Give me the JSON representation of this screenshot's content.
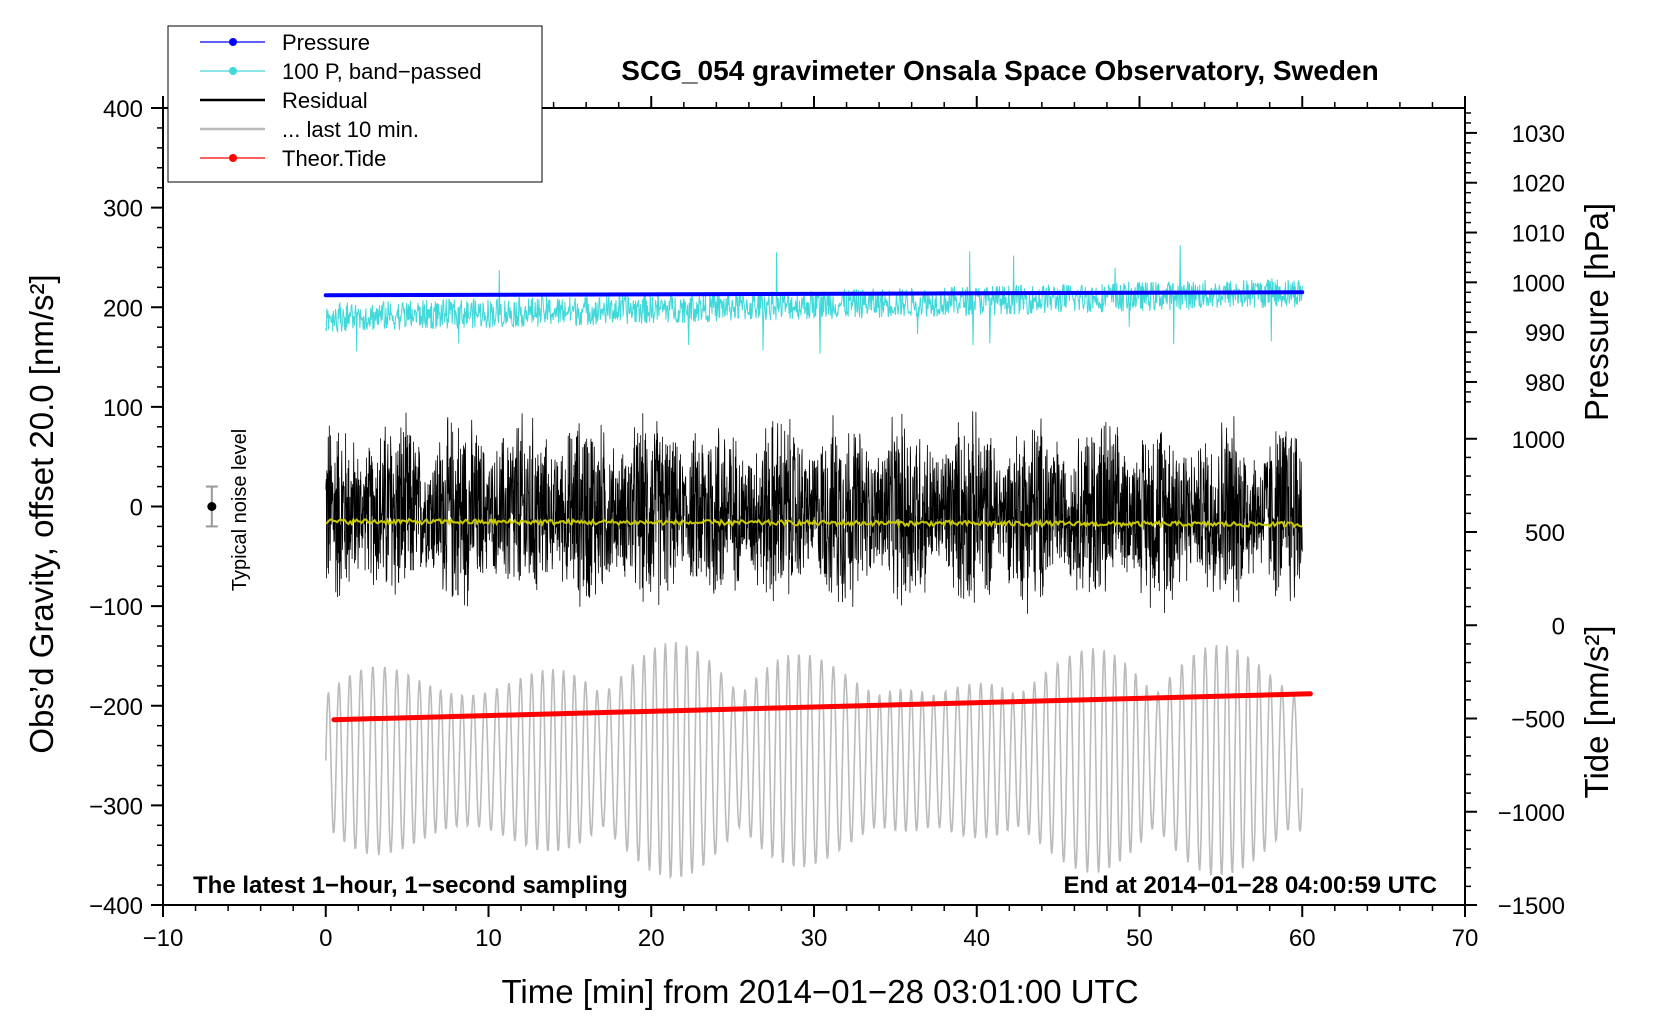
{
  "chart_data": {
    "type": "line",
    "title": "SCG_054 gravimeter Onsala Space Observatory, Sweden",
    "xlabel": "Time [min] from 2014−01−28 03:01:00 UTC",
    "ylabel_left": "Obs’d Gravity, offset 20.0 [nm/s²]",
    "ylabel_right_top": "Pressure [hPa]",
    "ylabel_right_bottom": "Tide [nm/s²]",
    "xlim": [
      -10,
      70
    ],
    "ylim": [
      -400,
      400
    ],
    "x_ticks": [
      -10,
      0,
      10,
      20,
      30,
      40,
      50,
      60,
      70
    ],
    "x_tick_labels": [
      "−10",
      "0",
      "10",
      "20",
      "30",
      "40",
      "50",
      "60",
      "70"
    ],
    "y_ticks": [
      400,
      300,
      200,
      100,
      0,
      -100,
      -200,
      -300,
      -400
    ],
    "y_tick_labels": [
      "400",
      "300",
      "200",
      "100",
      "0",
      "−100",
      "−200",
      "−300",
      "−400"
    ],
    "pressure_axis": {
      "ticks": [
        1030,
        1020,
        1010,
        1000,
        990,
        980
      ],
      "tick_labels": [
        "1030",
        "1020",
        "1010",
        "1000",
        "990",
        "980"
      ],
      "range_hpa_at_gravity": {
        "g400": 1035,
        "g100": 975
      }
    },
    "tide_axis": {
      "ticks": [
        1000,
        500,
        0,
        -500,
        -1000,
        -1500
      ],
      "tick_labels": [
        "1000",
        "500",
        "0",
        "−500",
        "−1000",
        "−1500"
      ],
      "range_nms2_at_gravity": {
        "g68": 1000,
        "g-400": -1500
      }
    },
    "legend": [
      {
        "label": "Pressure",
        "color": "#0000ff",
        "marker": true
      },
      {
        "label": "100 P, band−passed",
        "color": "#40d8d8",
        "marker": true
      },
      {
        "label": "Residual",
        "color": "#000000",
        "marker": false
      },
      {
        "label": "... last 10 min.",
        "color": "#bbbbbb",
        "marker": false
      },
      {
        "label": "Theor.Tide",
        "color": "#ff0000",
        "marker": true
      }
    ],
    "series": [
      {
        "name": "Pressure",
        "color": "#0000ff",
        "axis": "gravity",
        "x_range": [
          0,
          60
        ],
        "y_start": 212,
        "y_end": 215
      },
      {
        "name": "100 P, band-passed",
        "color": "#40d8d8",
        "axis": "gravity",
        "x_range": [
          0,
          60
        ],
        "y_start": 190,
        "y_end": 215,
        "noise_amplitude": 25
      },
      {
        "name": "Residual",
        "color": "#000000",
        "axis": "gravity",
        "x_range": [
          0,
          60
        ],
        "y_center": -5,
        "noise_amplitude": 110
      },
      {
        "name": "Residual smoothed",
        "color": "#c8c800",
        "axis": "gravity",
        "x_range": [
          0,
          60
        ],
        "y_start": -15,
        "y_end": -18
      },
      {
        "name": "... last 10 min.",
        "color": "#bbbbbb",
        "axis": "gravity",
        "x_range": [
          0,
          60
        ],
        "y_center": -255,
        "noise_amplitude": 120
      },
      {
        "name": "Theor.Tide",
        "color": "#ff0000",
        "axis": "gravity",
        "x_range": [
          0.5,
          60.5
        ],
        "y_start": -214,
        "y_end": -188
      }
    ],
    "annotations": {
      "noise_label": "Typical noise level",
      "noise_bar": {
        "x": -7,
        "y": 0,
        "error": 20
      },
      "bottom_left": "The latest 1−hour, 1−second sampling",
      "bottom_right": "End at 2014−01−28 04:00:59 UTC"
    }
  }
}
